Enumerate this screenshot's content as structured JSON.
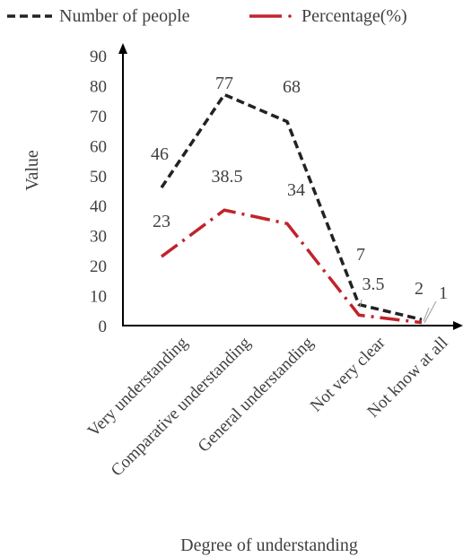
{
  "chart_data": {
    "type": "line",
    "categories": [
      "Very understanding",
      "Comparative understanding",
      "General understanding",
      "Not very clear",
      "Not  know at all"
    ],
    "series": [
      {
        "name": "Number of people",
        "values": [
          46,
          77,
          68,
          7,
          2
        ],
        "labels": [
          "46",
          "77",
          "68",
          "7",
          "2"
        ],
        "color": "#222222",
        "style": "dashed"
      },
      {
        "name": "Percentage(%)",
        "values": [
          23,
          38.5,
          34,
          3.5,
          1
        ],
        "labels": [
          "23",
          "38.5",
          "34",
          "3.5",
          "1"
        ],
        "color": "#c0232b",
        "style": "dash-dot"
      }
    ],
    "title": "",
    "xlabel": "Degree of understanding",
    "ylabel": "Value",
    "ylim": [
      0,
      90
    ],
    "yticks": [
      "0",
      "10",
      "20",
      "30",
      "40",
      "50",
      "60",
      "70",
      "80",
      "90"
    ],
    "grid": false,
    "legend_position": "top"
  }
}
